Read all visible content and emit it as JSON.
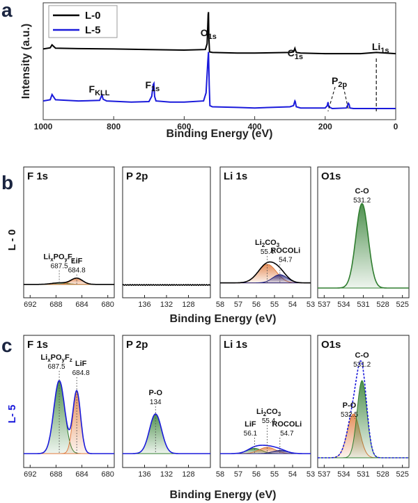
{
  "panel_letters": {
    "a": "a",
    "b": "b",
    "c": "c"
  },
  "colors": {
    "black": "#000000",
    "blue": "#1a1adb",
    "green": "#2f7d2f",
    "orange": "#e07a3c",
    "navy": "#1f1f7a"
  },
  "chart_data": [
    {
      "type": "line",
      "id": "a",
      "xlabel": "Binding Energy (eV)",
      "ylabel": "Intensity (a.u.)",
      "xlim": [
        1000,
        0
      ],
      "xticks": [
        1000,
        800,
        600,
        400,
        200,
        0
      ],
      "legend": {
        "position": "top-left",
        "entries": [
          {
            "name": "L-0",
            "color": "#000000"
          },
          {
            "name": "L-5",
            "color": "#1a1adb"
          }
        ]
      },
      "annotations": [
        {
          "base": "F",
          "sub": "KLL",
          "x": 833
        },
        {
          "base": "F",
          "sub": "1s",
          "x": 686
        },
        {
          "base": "O",
          "sub": "1s",
          "x": 531
        },
        {
          "base": "C",
          "sub": "1s",
          "x": 285
        },
        {
          "base": "P",
          "sub": "2p",
          "x": 160
        },
        {
          "base": "Li",
          "sub": "1s",
          "x": 55
        }
      ],
      "series": [
        {
          "name": "L-0",
          "color": "#000000",
          "x": [
            1000,
            980,
            975,
            965,
            900,
            800,
            700,
            600,
            540,
            535,
            532,
            531,
            530,
            528,
            520,
            450,
            400,
            300,
            290,
            286,
            285,
            282,
            270,
            200,
            150,
            100,
            55,
            0
          ],
          "y": [
            0.605,
            0.615,
            0.64,
            0.612,
            0.608,
            0.605,
            0.6,
            0.595,
            0.6,
            0.65,
            0.9,
            0.92,
            0.7,
            0.58,
            0.575,
            0.57,
            0.57,
            0.575,
            0.58,
            0.61,
            0.6,
            0.575,
            0.57,
            0.565,
            0.565,
            0.565,
            0.575,
            0.565
          ]
        },
        {
          "name": "L-5",
          "color": "#1a1adb",
          "x": [
            1000,
            980,
            975,
            965,
            900,
            840,
            835,
            833,
            830,
            820,
            750,
            700,
            692,
            688,
            686,
            684,
            680,
            640,
            600,
            545,
            538,
            533,
            531,
            529,
            527,
            520,
            450,
            400,
            300,
            290,
            286,
            285,
            282,
            270,
            200,
            194,
            192,
            190,
            180,
            140,
            134,
            132,
            130,
            120,
            60,
            0
          ],
          "y": [
            0.16,
            0.17,
            0.215,
            0.17,
            0.16,
            0.165,
            0.2,
            0.21,
            0.175,
            0.16,
            0.15,
            0.155,
            0.2,
            0.3,
            0.31,
            0.2,
            0.16,
            0.15,
            0.15,
            0.16,
            0.23,
            0.5,
            0.58,
            0.3,
            0.12,
            0.11,
            0.105,
            0.1,
            0.11,
            0.12,
            0.16,
            0.155,
            0.11,
            0.1,
            0.1,
            0.12,
            0.15,
            0.11,
            0.095,
            0.1,
            0.14,
            0.13,
            0.1,
            0.095,
            0.095,
            0.095
          ]
        }
      ]
    },
    {
      "type": "area",
      "id": "b-F1s",
      "row": "L - 0",
      "title": "F 1s",
      "xlim": [
        693,
        679
      ],
      "xticks": [
        692,
        688,
        684,
        680
      ],
      "ylim": [
        0,
        1
      ],
      "envelope_color": "#000000",
      "baseline": 0.035,
      "peaks": [
        {
          "label": "LixPOyFz",
          "center": 687.5,
          "height": 0.015,
          "width": 1.2,
          "color": "#2f7d2f",
          "value": "687.5"
        },
        {
          "label": "LiF",
          "center": 684.8,
          "height": 0.06,
          "width": 0.9,
          "color": "#e07a3c",
          "value": "684.8"
        }
      ]
    },
    {
      "type": "line",
      "id": "b-P2p",
      "row": "L - 0",
      "title": "P 2p",
      "xlim": [
        140,
        124
      ],
      "xticks": [
        136,
        132,
        128
      ],
      "ylim": [
        0,
        1
      ],
      "envelope_color": "#000000",
      "baseline": 0.03,
      "peaks": []
    },
    {
      "type": "area",
      "id": "b-Li1s",
      "row": "L - 0",
      "title": "Li 1s",
      "xlim": [
        58,
        53
      ],
      "xticks": [
        58,
        57,
        56,
        55,
        54,
        53
      ],
      "ylim": [
        0,
        1
      ],
      "envelope_color": "#000000",
      "baseline": 0.05,
      "peaks": [
        {
          "label": "Li2CO3",
          "center": 55.4,
          "height": 0.18,
          "width": 0.5,
          "color": "#e07a3c",
          "value": "55.4"
        },
        {
          "label": "ROCOLi",
          "center": 54.7,
          "height": 0.08,
          "width": 0.4,
          "color": "#1f1f7a",
          "value": "54.7"
        }
      ]
    },
    {
      "type": "area",
      "id": "b-O1s",
      "row": "L - 0",
      "title": "O1s",
      "xlim": [
        538,
        524
      ],
      "xticks": [
        537,
        534,
        531,
        528,
        525
      ],
      "ylim": [
        0,
        1
      ],
      "envelope_color": "#2f7d2f",
      "baseline": 0.0,
      "peaks": [
        {
          "label": "C-O",
          "center": 531.2,
          "height": 0.82,
          "width": 0.95,
          "color": "#2f7d2f",
          "value": "531.2"
        }
      ]
    },
    {
      "type": "area",
      "id": "c-F1s",
      "row": "L- 5",
      "title": "F 1s",
      "xlim": [
        693,
        679
      ],
      "xticks": [
        692,
        688,
        684,
        680
      ],
      "ylim": [
        0,
        1
      ],
      "envelope_color": "#1a1adb",
      "baseline": 0.04,
      "peaks": [
        {
          "label": "LixPOyFz",
          "center": 687.5,
          "height": 0.7,
          "width": 0.85,
          "color": "#2f7d2f",
          "value": "687.5"
        },
        {
          "label": "LiF",
          "center": 684.8,
          "height": 0.6,
          "width": 0.6,
          "color": "#e07a3c",
          "value": "684.8"
        }
      ]
    },
    {
      "type": "area",
      "id": "c-P2p",
      "row": "L- 5",
      "title": "P 2p",
      "xlim": [
        140,
        124
      ],
      "xticks": [
        136,
        132,
        128
      ],
      "ylim": [
        0,
        1
      ],
      "envelope_color": "#1a1adb",
      "baseline": 0.04,
      "peaks": [
        {
          "label": "P-O",
          "center": 134,
          "height": 0.38,
          "width": 1.1,
          "color": "#2f7d2f",
          "value": "134"
        }
      ]
    },
    {
      "type": "area",
      "id": "c-Li1s",
      "row": "L- 5",
      "title": "Li 1s",
      "xlim": [
        58,
        53
      ],
      "xticks": [
        58,
        57,
        56,
        55,
        54,
        53
      ],
      "ylim": [
        0,
        1
      ],
      "envelope_color": "#1a1adb",
      "baseline": 0.04,
      "peaks": [
        {
          "label": "LiF",
          "center": 56.1,
          "height": 0.05,
          "width": 0.4,
          "color": "#2f7d2f",
          "value": "56.1"
        },
        {
          "label": "Li2CO3",
          "center": 55.4,
          "height": 0.06,
          "width": 0.45,
          "color": "#e07a3c",
          "value": "55.4"
        },
        {
          "label": "ROCOLi",
          "center": 54.7,
          "height": 0.03,
          "width": 0.4,
          "color": "#1f1f7a",
          "value": "54.7"
        }
      ]
    },
    {
      "type": "area",
      "id": "c-O1s",
      "row": "L- 5",
      "title": "O1s",
      "xlim": [
        538,
        524
      ],
      "xticks": [
        537,
        534,
        531,
        528,
        525
      ],
      "ylim": [
        0,
        1
      ],
      "envelope_color": "#1a1adb",
      "baseline": 0.0,
      "peaks": [
        {
          "label": "P-O",
          "center": 532.5,
          "height": 0.42,
          "width": 0.95,
          "color": "#e07a3c",
          "value": "532.5"
        },
        {
          "label": "C-O",
          "center": 531.2,
          "height": 0.74,
          "width": 0.75,
          "color": "#2f7d2f",
          "value": "531.2"
        }
      ]
    }
  ],
  "shared_xlabel": "Binding Energy (eV)"
}
